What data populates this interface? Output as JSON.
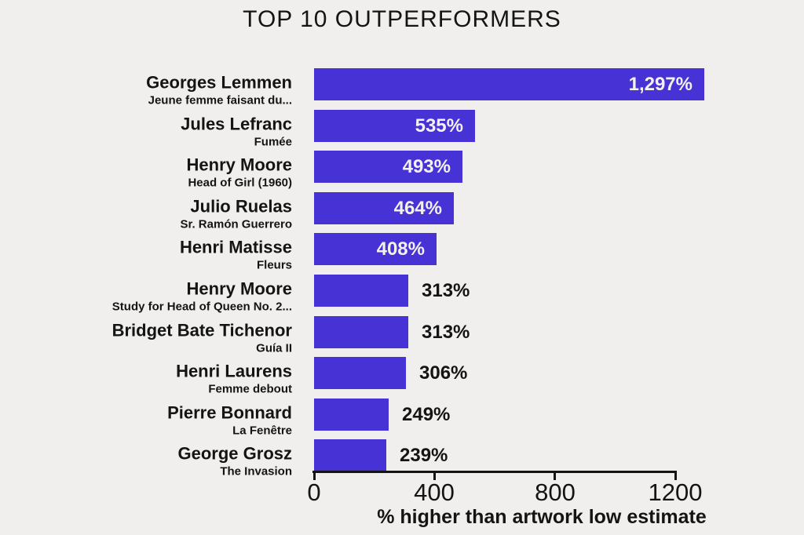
{
  "chart_data": {
    "type": "bar",
    "orientation": "horizontal",
    "title": "TOP 10 OUTPERFORMERS",
    "xlabel": "% higher than artwork low estimate",
    "xlim": [
      0,
      1200
    ],
    "xticks": [
      0,
      400,
      800,
      1200
    ],
    "grid": false,
    "legend": "none",
    "colors": {
      "background": "#f0efed",
      "bar": "#4732d6",
      "text": "#141414",
      "value_label_inside": "#f3f1ec",
      "value_label_outside": "#141414",
      "axis": "#141414"
    },
    "bars": [
      {
        "artist": "Georges Lemmen",
        "artwork": "Jeune femme faisant du...",
        "value": 1297,
        "value_label": "1,297%",
        "label_placement": "inside"
      },
      {
        "artist": "Jules Lefranc",
        "artwork": "Fumée",
        "value": 535,
        "value_label": "535%",
        "label_placement": "inside"
      },
      {
        "artist": "Henry Moore",
        "artwork": "Head of Girl (1960)",
        "value": 493,
        "value_label": "493%",
        "label_placement": "inside"
      },
      {
        "artist": "Julio Ruelas",
        "artwork": "Sr. Ramón Guerrero",
        "value": 464,
        "value_label": "464%",
        "label_placement": "inside"
      },
      {
        "artist": "Henri Matisse",
        "artwork": "Fleurs",
        "value": 408,
        "value_label": "408%",
        "label_placement": "inside"
      },
      {
        "artist": "Henry Moore",
        "artwork": "Study for Head of Queen No. 2...",
        "value": 313,
        "value_label": "313%",
        "label_placement": "outside"
      },
      {
        "artist": "Bridget Bate Tichenor",
        "artwork": "Guía II",
        "value": 313,
        "value_label": "313%",
        "label_placement": "outside"
      },
      {
        "artist": "Henri Laurens",
        "artwork": "Femme debout",
        "value": 306,
        "value_label": "306%",
        "label_placement": "outside"
      },
      {
        "artist": "Pierre Bonnard",
        "artwork": "La Fenêtre",
        "value": 249,
        "value_label": "249%",
        "label_placement": "outside"
      },
      {
        "artist": "George Grosz",
        "artwork": "The Invasion",
        "value": 239,
        "value_label": "239%",
        "label_placement": "outside"
      }
    ]
  }
}
